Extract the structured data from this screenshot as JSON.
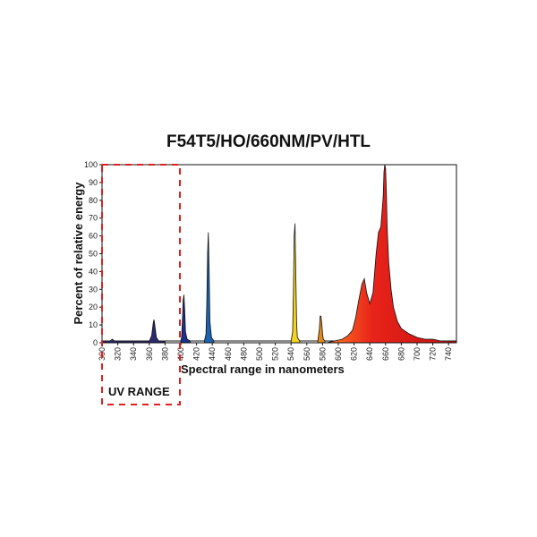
{
  "chart_data": {
    "type": "area",
    "title": "F54T5/HO/660NM/PV/HTL",
    "xlabel": "Spectral range in nanometers",
    "ylabel": "Percent of relative energy",
    "xlim": [
      300,
      750
    ],
    "ylim": [
      0,
      100
    ],
    "x_ticks": [
      300,
      320,
      340,
      360,
      380,
      400,
      420,
      440,
      460,
      480,
      500,
      520,
      540,
      560,
      580,
      600,
      620,
      640,
      660,
      680,
      700,
      720,
      740
    ],
    "y_ticks": [
      0,
      10,
      20,
      30,
      40,
      50,
      60,
      70,
      80,
      90,
      100
    ],
    "grid": false,
    "annotations": [
      {
        "text": "UV RANGE",
        "x_range": [
          300,
          400
        ]
      }
    ],
    "series": [
      {
        "color": "#2b2a6e",
        "x": [
          300,
          305,
          310,
          313,
          316,
          320,
          360,
          363,
          365,
          366,
          367,
          369,
          372,
          380
        ],
        "y": [
          1,
          1,
          1,
          2,
          1,
          1,
          1,
          4,
          11,
          13,
          10,
          3,
          1,
          1
        ]
      },
      {
        "color": "#1e2f8c",
        "x": [
          400,
          401,
          402,
          403,
          404,
          405,
          406,
          408,
          412
        ],
        "y": [
          1,
          3,
          12,
          24,
          27,
          18,
          6,
          2,
          1
        ]
      },
      {
        "color": "#1b63b0",
        "x": [
          430,
          432,
          433,
          434,
          435,
          436,
          437,
          439,
          442
        ],
        "y": [
          1,
          5,
          22,
          50,
          62,
          40,
          12,
          3,
          1
        ]
      },
      {
        "color": "#f2d21e",
        "x": [
          540,
          542,
          543,
          544,
          545,
          546,
          547,
          548,
          551
        ],
        "y": [
          1,
          6,
          28,
          60,
          67,
          40,
          12,
          3,
          1
        ]
      },
      {
        "color": "#e08a1c",
        "x": [
          574,
          576,
          577,
          578,
          579,
          580,
          581,
          583
        ],
        "y": [
          1,
          8,
          15,
          15,
          11,
          5,
          2,
          1
        ]
      },
      {
        "color": "#e01a14",
        "x": [
          585,
          595,
          605,
          612,
          618,
          622,
          626,
          630,
          633,
          636,
          640,
          644,
          648,
          651,
          654,
          657,
          658,
          659,
          660,
          661,
          662,
          664,
          667,
          670,
          675,
          680,
          690,
          700,
          710,
          720,
          730,
          740,
          750
        ],
        "y": [
          0,
          1,
          2,
          4,
          7,
          14,
          24,
          33,
          36,
          28,
          22,
          28,
          50,
          62,
          65,
          82,
          96,
          100,
          98,
          85,
          65,
          45,
          30,
          20,
          12,
          8,
          5,
          3,
          2,
          2,
          1,
          1,
          1
        ]
      }
    ]
  }
}
